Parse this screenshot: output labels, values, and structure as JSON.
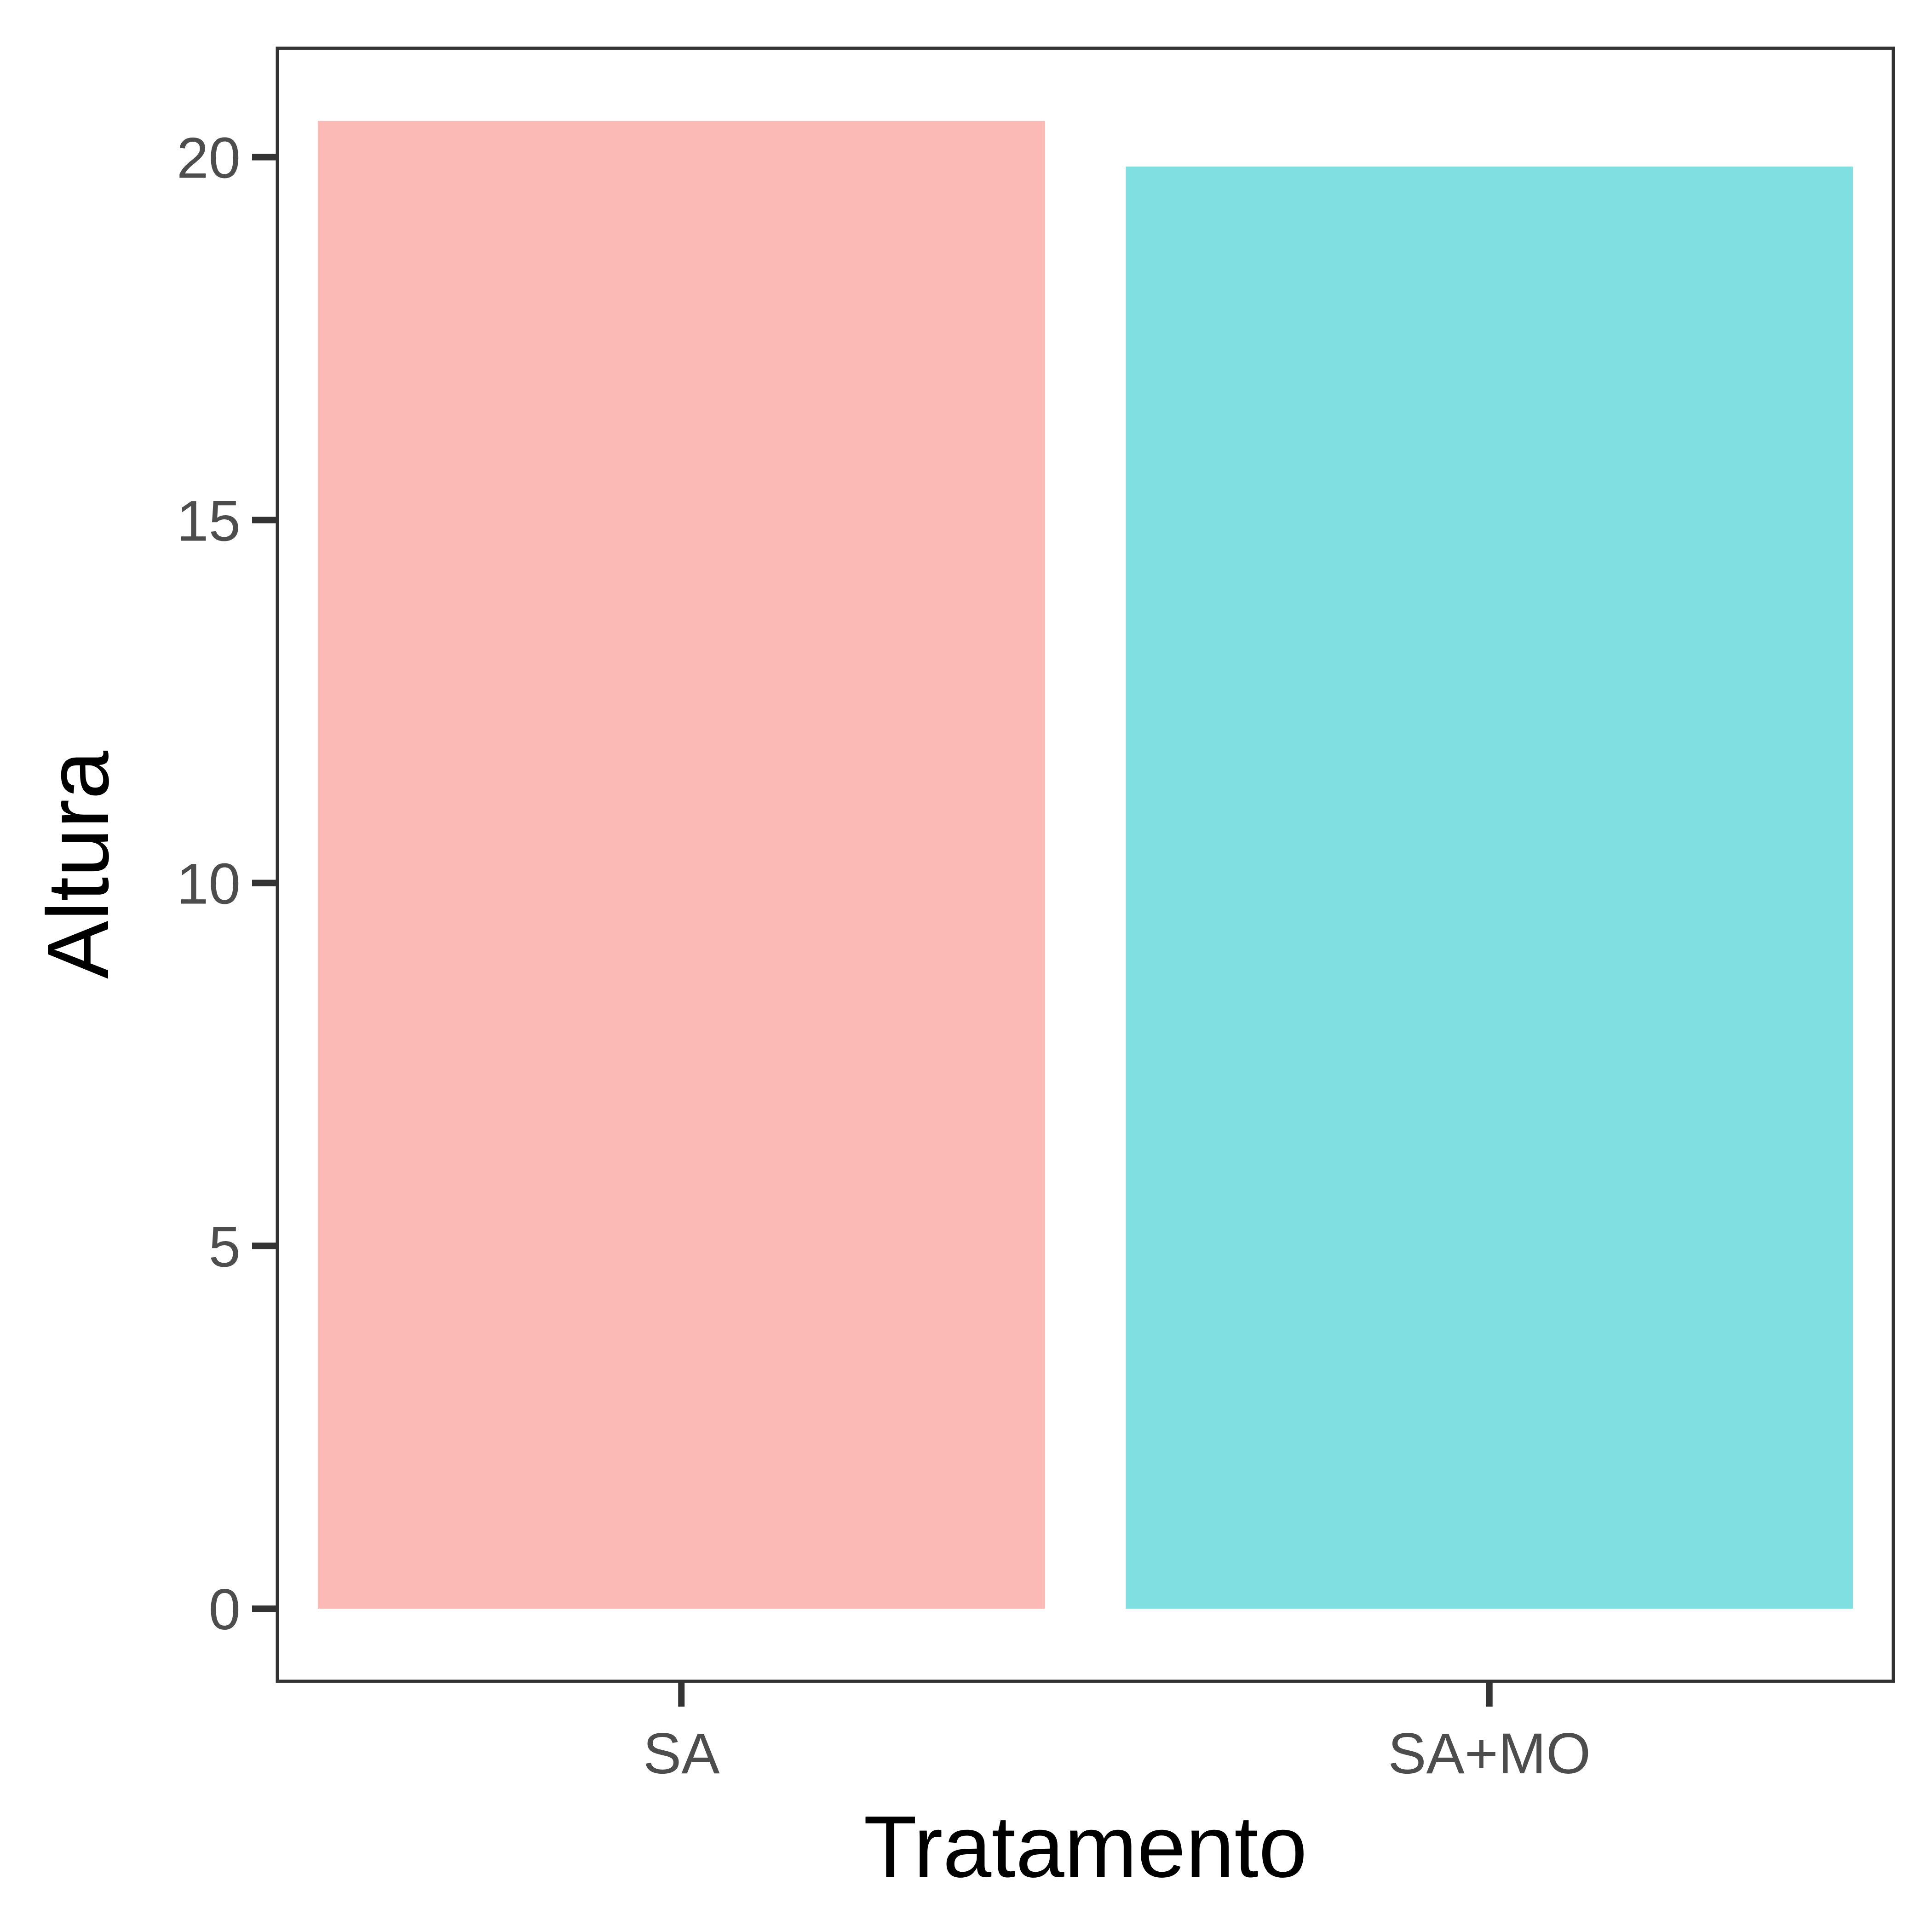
{
  "chart_data": {
    "type": "bar",
    "categories": [
      "SA",
      "SA+MO"
    ],
    "values": [
      20.5,
      19.87
    ],
    "colors": [
      "#F8766D",
      "#00BFC4"
    ],
    "bar_opacity": 0.5,
    "xlabel": "Tratamento",
    "ylabel": "Altura",
    "ylim": [
      -1,
      21.5
    ],
    "yticks": [
      0,
      5,
      10,
      15,
      20
    ],
    "grid": false,
    "legend": "none",
    "panel_border": true
  }
}
